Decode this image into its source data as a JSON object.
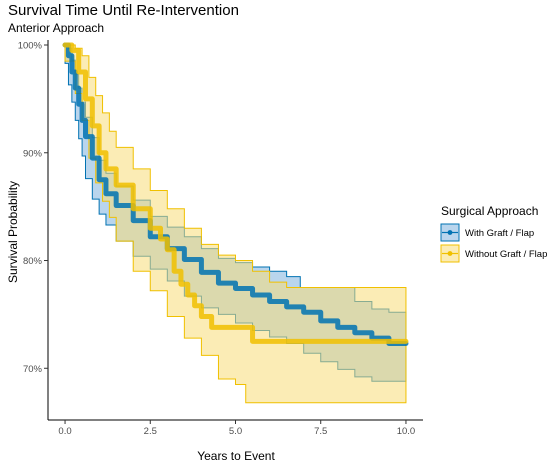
{
  "chart_data": {
    "type": "line",
    "title": "Survival Time Until Re-Intervention",
    "subtitle": "Anterior Approach",
    "xlabel": "Years to Event",
    "ylabel": "Survival Probability",
    "xlim": [
      -0.5,
      10.5
    ],
    "ylim": [
      0.652,
      1.0
    ],
    "x_ticks": [
      0,
      2.5,
      5,
      7.5,
      10
    ],
    "x_tick_labels": [
      "0.0",
      "2.5",
      "5.0",
      "7.5",
      "10.0"
    ],
    "y_ticks": [
      0.7,
      0.8,
      0.9,
      1.0
    ],
    "y_tick_labels": [
      "70%",
      "80%",
      "90%",
      "100%"
    ],
    "grid": false,
    "legend": {
      "title": "Surgical Approach",
      "position": "right"
    },
    "series": [
      {
        "name": "With Graft / Flap",
        "color": "#0072B2",
        "fill": "#7FB2DF",
        "points": [
          [
            0,
            1.0
          ],
          [
            0.1,
            0.99
          ],
          [
            0.2,
            0.975
          ],
          [
            0.3,
            0.96
          ],
          [
            0.4,
            0.945
          ],
          [
            0.5,
            0.93
          ],
          [
            0.6,
            0.915
          ],
          [
            0.8,
            0.895
          ],
          [
            1.0,
            0.875
          ],
          [
            1.2,
            0.862
          ],
          [
            1.5,
            0.851
          ],
          [
            2.0,
            0.837
          ],
          [
            2.5,
            0.822
          ],
          [
            3.0,
            0.811
          ],
          [
            3.5,
            0.801
          ],
          [
            4.0,
            0.789
          ],
          [
            4.5,
            0.779
          ],
          [
            5.0,
            0.774
          ],
          [
            5.5,
            0.768
          ],
          [
            6.0,
            0.762
          ],
          [
            6.5,
            0.757
          ],
          [
            7.0,
            0.752
          ],
          [
            7.5,
            0.744
          ],
          [
            8.0,
            0.738
          ],
          [
            8.5,
            0.733
          ],
          [
            9.0,
            0.728
          ],
          [
            9.5,
            0.723
          ],
          [
            10.0,
            0.723
          ]
        ],
        "upper": [
          [
            0,
            1.0
          ],
          [
            0.1,
            0.997
          ],
          [
            0.2,
            0.986
          ],
          [
            0.3,
            0.973
          ],
          [
            0.4,
            0.96
          ],
          [
            0.5,
            0.947
          ],
          [
            0.6,
            0.933
          ],
          [
            0.8,
            0.914
          ],
          [
            1.0,
            0.893
          ],
          [
            1.2,
            0.881
          ],
          [
            1.5,
            0.869
          ],
          [
            2.0,
            0.856
          ],
          [
            2.5,
            0.841
          ],
          [
            3.0,
            0.831
          ],
          [
            3.5,
            0.822
          ],
          [
            4.0,
            0.811
          ],
          [
            4.5,
            0.802
          ],
          [
            5.0,
            0.798
          ],
          [
            5.5,
            0.794
          ],
          [
            6.0,
            0.79
          ],
          [
            6.5,
            0.785
          ],
          [
            6.9,
            0.775
          ],
          [
            7.5,
            0.775
          ],
          [
            8.0,
            0.775
          ],
          [
            8.5,
            0.762
          ],
          [
            9.0,
            0.755
          ],
          [
            9.5,
            0.752
          ],
          [
            10.0,
            0.752
          ]
        ],
        "lower": [
          [
            0,
            1.0
          ],
          [
            0.1,
            0.983
          ],
          [
            0.2,
            0.963
          ],
          [
            0.3,
            0.947
          ],
          [
            0.4,
            0.93
          ],
          [
            0.5,
            0.913
          ],
          [
            0.6,
            0.897
          ],
          [
            0.8,
            0.876
          ],
          [
            1.0,
            0.857
          ],
          [
            1.2,
            0.843
          ],
          [
            1.5,
            0.833
          ],
          [
            2.0,
            0.818
          ],
          [
            2.5,
            0.804
          ],
          [
            3.0,
            0.792
          ],
          [
            3.5,
            0.781
          ],
          [
            4.0,
            0.767
          ],
          [
            4.5,
            0.756
          ],
          [
            5.0,
            0.75
          ],
          [
            5.5,
            0.742
          ],
          [
            6.0,
            0.735
          ],
          [
            6.5,
            0.729
          ],
          [
            7.0,
            0.723
          ],
          [
            7.5,
            0.714
          ],
          [
            8.0,
            0.706
          ],
          [
            8.5,
            0.699
          ],
          [
            9.0,
            0.692
          ],
          [
            9.5,
            0.688
          ],
          [
            10.0,
            0.688
          ]
        ]
      },
      {
        "name": "Without Graft / Flap",
        "color": "#F0C000",
        "fill": "#F7DD78",
        "points": [
          [
            0,
            1.0
          ],
          [
            0.2,
            0.995
          ],
          [
            0.4,
            0.975
          ],
          [
            0.6,
            0.95
          ],
          [
            0.8,
            0.925
          ],
          [
            1.0,
            0.9
          ],
          [
            1.2,
            0.885
          ],
          [
            1.5,
            0.87
          ],
          [
            2.0,
            0.848
          ],
          [
            2.5,
            0.83
          ],
          [
            2.8,
            0.82
          ],
          [
            3.0,
            0.81
          ],
          [
            3.2,
            0.79
          ],
          [
            3.4,
            0.778
          ],
          [
            3.6,
            0.768
          ],
          [
            3.8,
            0.758
          ],
          [
            4.0,
            0.748
          ],
          [
            4.3,
            0.738
          ],
          [
            5.0,
            0.738
          ],
          [
            5.5,
            0.725
          ],
          [
            6.5,
            0.725
          ],
          [
            7.5,
            0.725
          ],
          [
            10.0,
            0.725
          ]
        ],
        "upper": [
          [
            0,
            1.0
          ],
          [
            0.3,
            0.997
          ],
          [
            0.5,
            0.99
          ],
          [
            0.7,
            0.97
          ],
          [
            0.9,
            0.953
          ],
          [
            1.1,
            0.937
          ],
          [
            1.3,
            0.92
          ],
          [
            1.5,
            0.905
          ],
          [
            2.0,
            0.885
          ],
          [
            2.5,
            0.865
          ],
          [
            3.0,
            0.848
          ],
          [
            3.5,
            0.83
          ],
          [
            4.0,
            0.815
          ],
          [
            4.5,
            0.805
          ],
          [
            5.0,
            0.8
          ],
          [
            5.5,
            0.79
          ],
          [
            6.0,
            0.78
          ],
          [
            6.5,
            0.775
          ],
          [
            7.0,
            0.775
          ],
          [
            8.0,
            0.775
          ],
          [
            10.0,
            0.775
          ]
        ],
        "lower": [
          [
            0,
            1.0
          ],
          [
            0.3,
            0.985
          ],
          [
            0.5,
            0.955
          ],
          [
            0.7,
            0.93
          ],
          [
            0.9,
            0.895
          ],
          [
            1.1,
            0.872
          ],
          [
            1.3,
            0.855
          ],
          [
            1.5,
            0.84
          ],
          [
            2.0,
            0.818
          ],
          [
            2.5,
            0.79
          ],
          [
            3.0,
            0.772
          ],
          [
            3.5,
            0.748
          ],
          [
            4.0,
            0.728
          ],
          [
            4.5,
            0.712
          ],
          [
            5.0,
            0.69
          ],
          [
            5.3,
            0.685
          ],
          [
            5.5,
            0.668
          ],
          [
            7.0,
            0.668
          ],
          [
            8.0,
            0.668
          ],
          [
            10.0,
            0.668
          ]
        ]
      }
    ]
  }
}
